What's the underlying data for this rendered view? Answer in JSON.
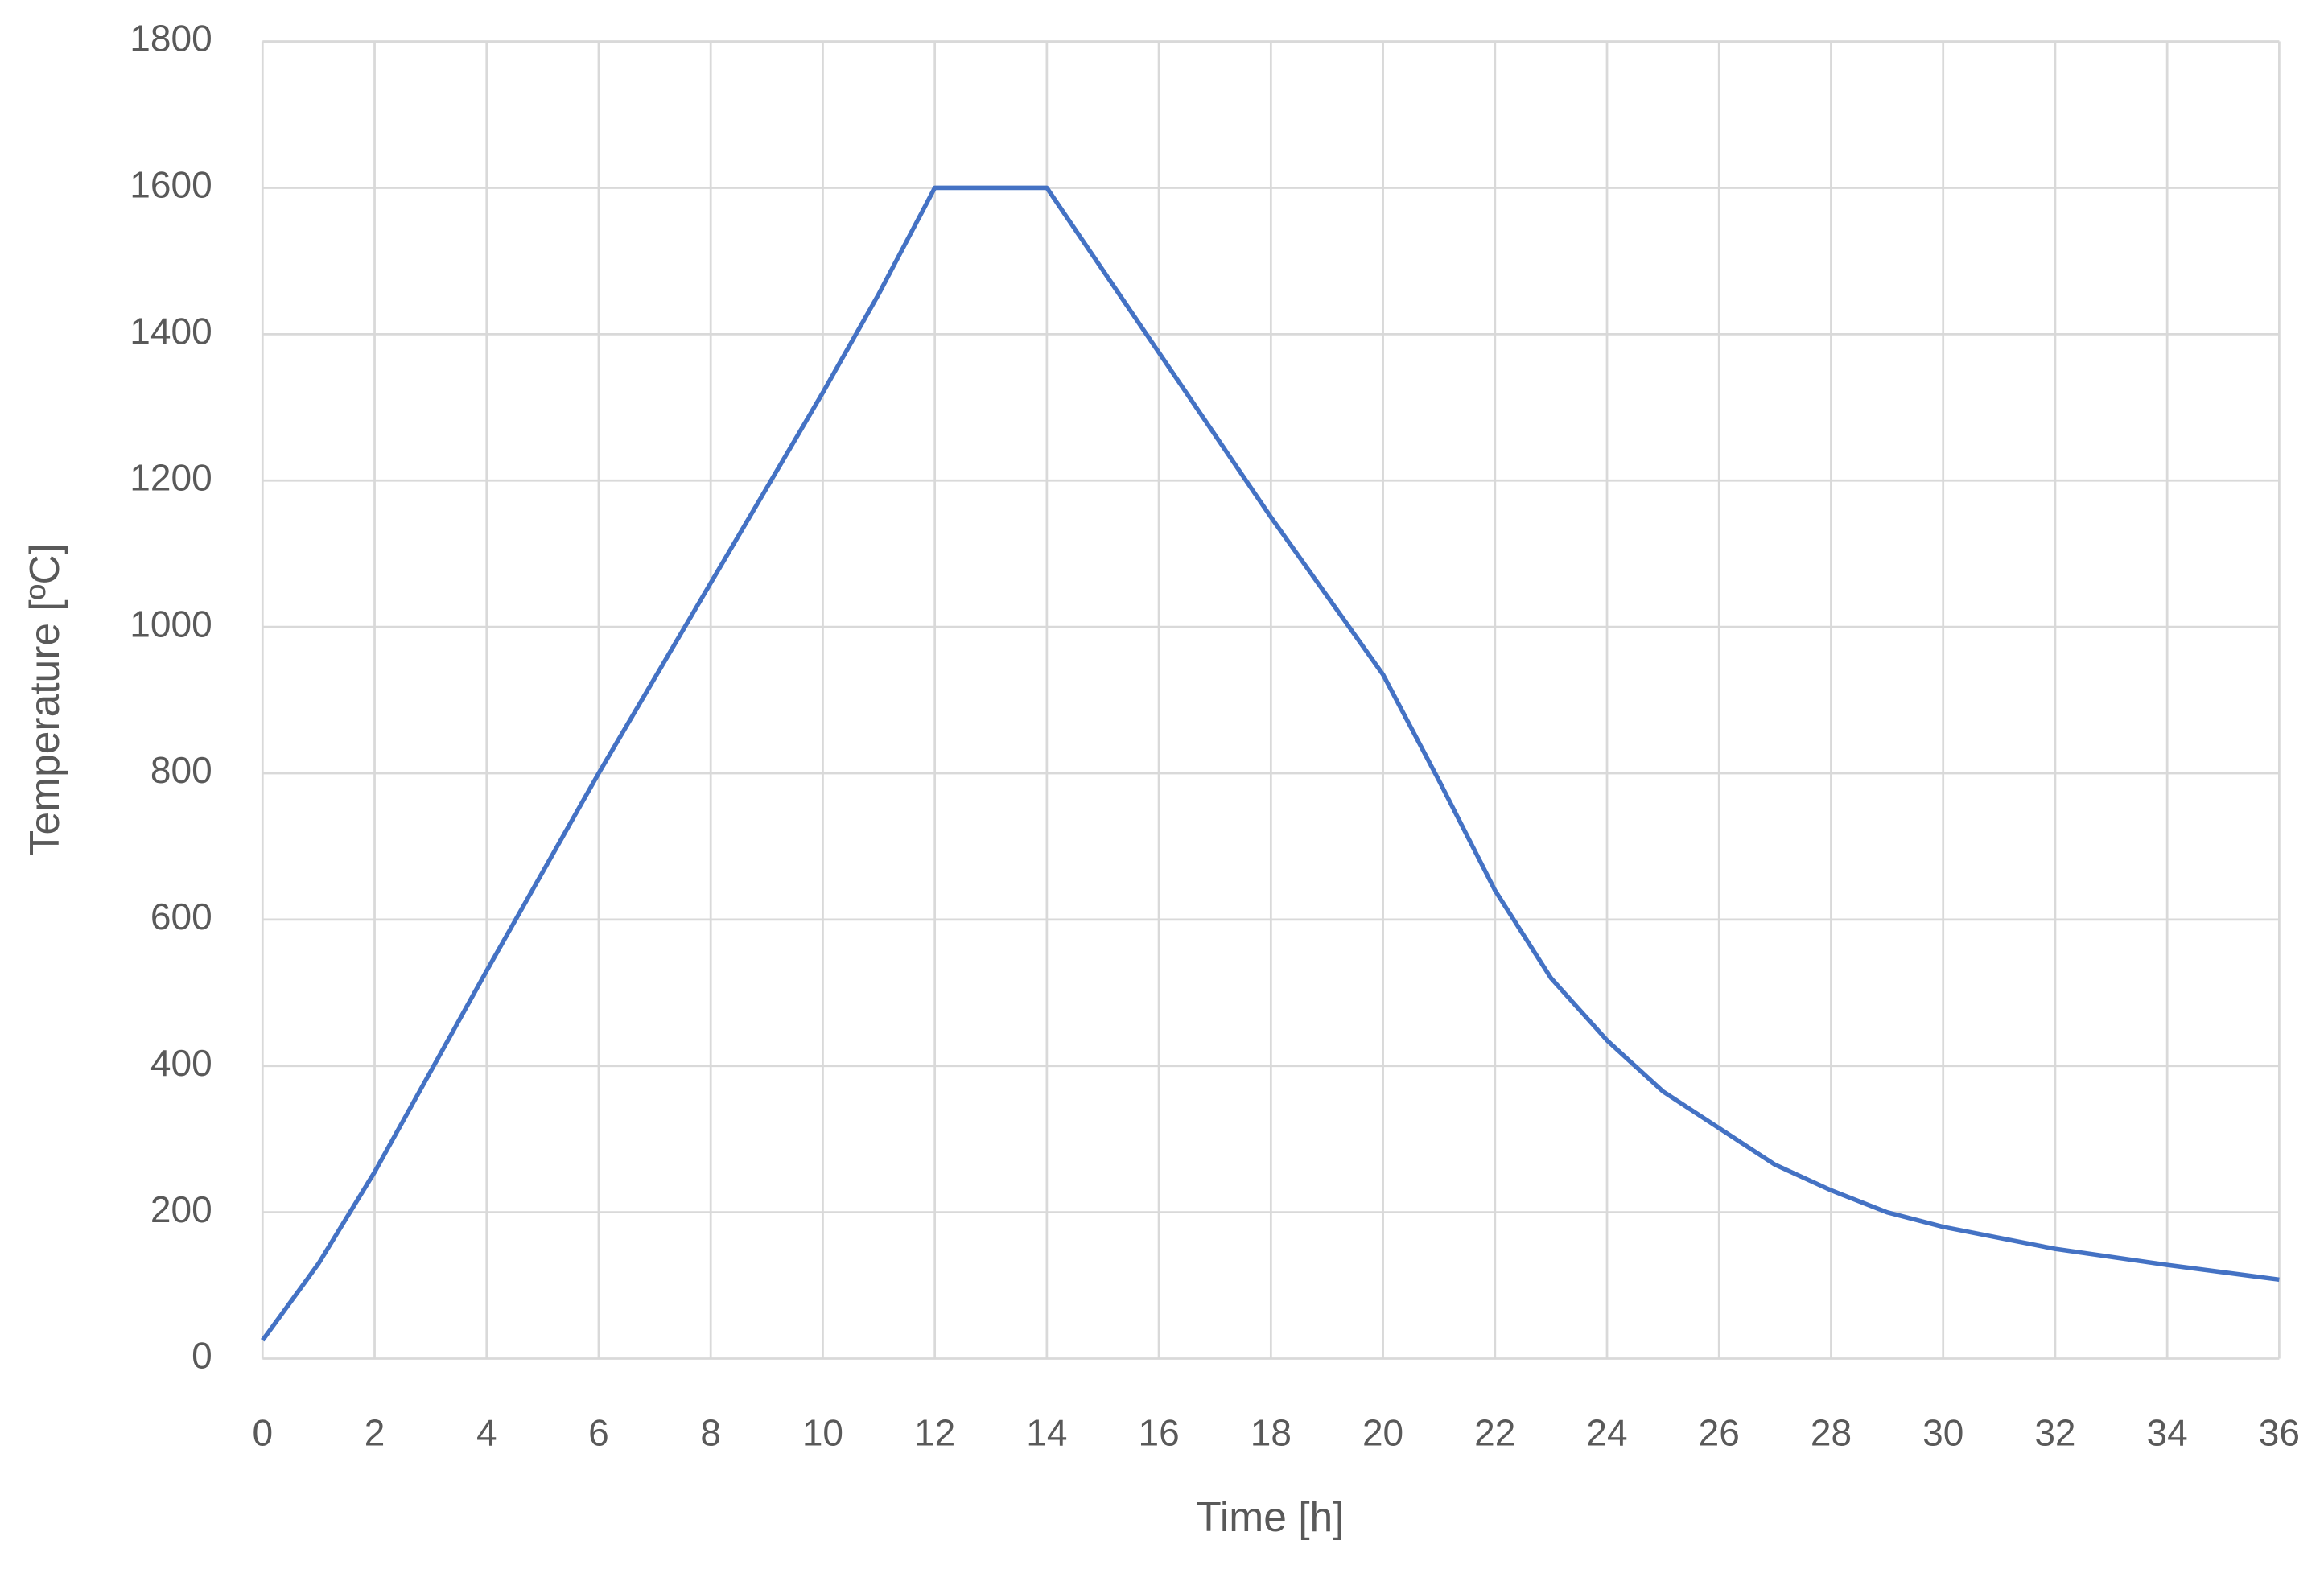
{
  "chart_data": {
    "type": "line",
    "x_label": "Time [h]",
    "y_label": "Temperature [ºC]",
    "x": [
      0,
      1,
      2,
      4,
      6,
      8,
      10,
      11,
      12,
      14,
      16,
      18,
      20,
      21,
      22,
      23,
      24,
      25,
      26,
      27,
      28,
      29,
      30,
      32,
      34,
      36
    ],
    "series": [
      {
        "name": "Temperature",
        "color": "#4472c4",
        "values": [
          25,
          130,
          255,
          530,
          800,
          1060,
          1320,
          1455,
          1600,
          1600,
          1375,
          1150,
          935,
          790,
          640,
          520,
          435,
          365,
          315,
          265,
          230,
          200,
          180,
          150,
          128,
          108
        ]
      }
    ],
    "xlim": [
      0,
      36
    ],
    "xticks": [
      0,
      2,
      4,
      6,
      8,
      10,
      12,
      14,
      16,
      18,
      20,
      22,
      24,
      26,
      28,
      30,
      32,
      34,
      36
    ],
    "ylim": [
      0,
      1800
    ],
    "yticks": [
      0,
      200,
      400,
      600,
      800,
      1000,
      1200,
      1400,
      1600,
      1800
    ],
    "grid": true
  }
}
